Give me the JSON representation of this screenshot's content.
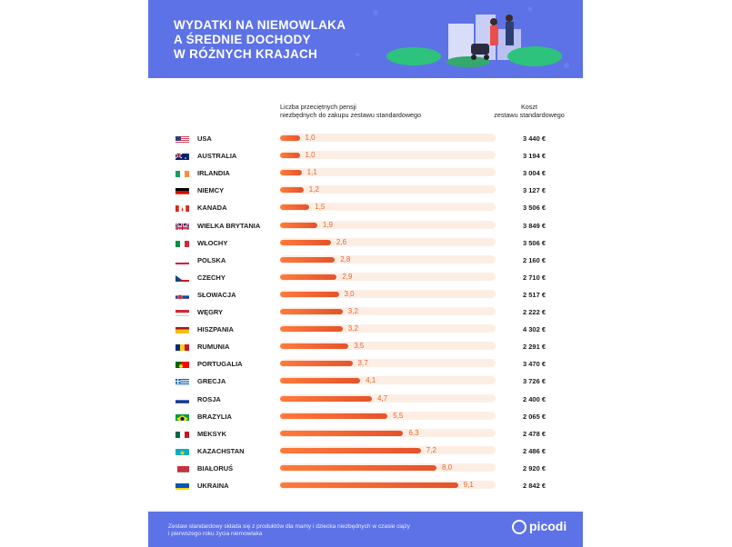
{
  "header": {
    "title_lines": [
      "WYDATKI NA NIEMOWLAKA",
      "A ŚREDNIE DOCHODY",
      "W RÓŻNYCH KRAJACH"
    ]
  },
  "columns": {
    "left_line1": "Liczba przeciętnych pensji",
    "left_line2": "niezbędnych do zakupu zestawu standardowego",
    "right_line1": "Koszt",
    "right_line2": "zestawu standardowego"
  },
  "chart_data": {
    "type": "bar",
    "title": "WYDATKI NA NIEMOWLAKA A ŚREDNIE DOCHODY W RÓŻNYCH KRAJACH",
    "categories": [
      "USA",
      "AUSTRALIA",
      "IRLANDIA",
      "NIEMCY",
      "KANADA",
      "WIELKA BRYTANIA",
      "WŁOCHY",
      "POLSKA",
      "CZECHY",
      "SŁOWACJA",
      "WĘGRY",
      "HISZPANIA",
      "RUMUNIA",
      "PORTUGALIA",
      "GRECJA",
      "ROSJA",
      "BRAZYLIA",
      "MEKSYK",
      "KAZACHSTAN",
      "BIAŁORUŚ",
      "UKRAINA"
    ],
    "series": [
      {
        "name": "Liczba przeciętnych pensji niezbędnych do zakupu zestawu standardowego",
        "values": [
          1.0,
          1.0,
          1.1,
          1.2,
          1.5,
          1.9,
          2.6,
          2.8,
          2.9,
          3.0,
          3.2,
          3.2,
          3.5,
          3.7,
          4.1,
          4.7,
          5.5,
          6.3,
          7.2,
          8.0,
          9.1
        ],
        "labels": [
          "1,0",
          "1,0",
          "1,1",
          "1,2",
          "1,5",
          "1,9",
          "2,6",
          "2,8",
          "2,9",
          "3,0",
          "3,2",
          "3,2",
          "3,5",
          "3,7",
          "4,1",
          "4,7",
          "5,5",
          "6,3",
          "7,2",
          "8,0",
          "9,1"
        ]
      },
      {
        "name": "Koszt zestawu standardowego",
        "values": [
          3440,
          3194,
          3004,
          3127,
          3506,
          3849,
          3506,
          2160,
          2710,
          2517,
          2222,
          4302,
          2291,
          3470,
          3726,
          2400,
          2065,
          2478,
          2486,
          2920,
          2842
        ],
        "labels": [
          "3 440 €",
          "3 194 €",
          "3 004 €",
          "3 127 €",
          "3 506 €",
          "3 849 €",
          "3 506 €",
          "2 160 €",
          "2 710 €",
          "2 517 €",
          "2 222 €",
          "4 302 €",
          "2 291 €",
          "3 470 €",
          "3 726 €",
          "2 400 €",
          "2 065 €",
          "2 478 €",
          "2 486 €",
          "2 920 €",
          "2 842 €"
        ]
      }
    ],
    "xlim": [
      0,
      10
    ],
    "colors": {
      "bar": "#f06a32",
      "track": "#fdeee4",
      "value_text": "#e8652f"
    }
  },
  "flags": [
    "us",
    "au",
    "ie",
    "de",
    "ca",
    "gb",
    "it",
    "pl",
    "cz",
    "sk",
    "hu",
    "es",
    "ro",
    "pt",
    "gr",
    "ru",
    "br",
    "mx",
    "kz",
    "by",
    "ua"
  ],
  "footer": {
    "note_line1": "Zestaw standardowy składa się z produktów dla mamy i dziecka niezbędnych w czasie ciąży",
    "note_line2": "i pierwszego roku życia niemowlaka",
    "brand": "picodi"
  },
  "colors": {
    "header": "#5d72e6",
    "accent": "#f06a32"
  }
}
